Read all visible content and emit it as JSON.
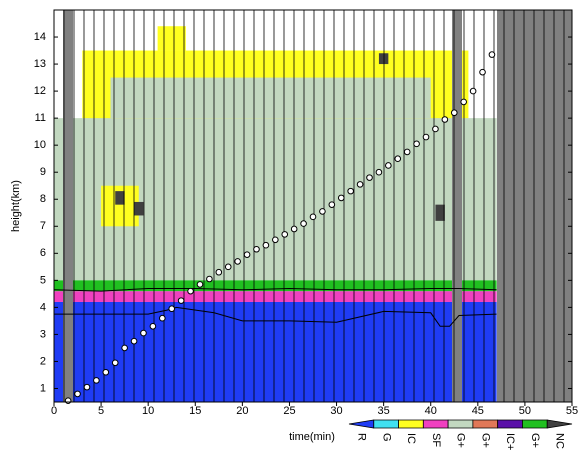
{
  "chart_data": {
    "type": "heatmap",
    "x_label": "time(min)",
    "y_label": "height(km)",
    "xlim": [
      0,
      55
    ],
    "ylim": [
      0.5,
      15
    ],
    "xticks": [
      0,
      5,
      10,
      15,
      20,
      25,
      30,
      35,
      40,
      45,
      50,
      55
    ],
    "yticks": [
      1,
      2,
      3,
      4,
      5,
      6,
      7,
      8,
      9,
      10,
      11,
      12,
      13,
      14
    ],
    "classes": [
      {
        "name": "R",
        "color": "#1f3cf5"
      },
      {
        "name": "G",
        "color": "#40e0f0"
      },
      {
        "name": "IC",
        "color": "#ffff20"
      },
      {
        "name": "SF",
        "color": "#f040c0"
      },
      {
        "name": "G+",
        "color": "#c2d8c0"
      },
      {
        "name": "G+",
        "color": "#e07858"
      },
      {
        "name": "IC+",
        "color": "#5a10a8"
      },
      {
        "name": "G+",
        "color": "#20c020"
      },
      {
        "name": "NC",
        "color": "#404040"
      }
    ],
    "regions": [
      {
        "class": 2,
        "x": [
          3,
          44
        ],
        "y": [
          10.5,
          13.5
        ]
      },
      {
        "class": 2,
        "x": [
          11,
          14
        ],
        "y": [
          13.5,
          14.4
        ]
      },
      {
        "class": 4,
        "x": [
          0,
          47
        ],
        "y": [
          5,
          11
        ]
      },
      {
        "class": 4,
        "x": [
          6,
          40
        ],
        "y": [
          11,
          12.5
        ]
      },
      {
        "class": 2,
        "x": [
          5,
          9
        ],
        "y": [
          7,
          8.5
        ]
      },
      {
        "class": 0,
        "x": [
          0,
          47
        ],
        "y": [
          0.5,
          4.2
        ]
      },
      {
        "class": 3,
        "x": [
          0,
          47
        ],
        "y": [
          4.2,
          4.6
        ]
      },
      {
        "class": 7,
        "x": [
          0,
          47
        ],
        "y": [
          4.6,
          5
        ]
      },
      {
        "class": 8,
        "x": [
          6.5,
          7.5
        ],
        "y": [
          7.8,
          8.3
        ]
      },
      {
        "class": 8,
        "x": [
          8.5,
          9.5
        ],
        "y": [
          7.4,
          7.9
        ]
      },
      {
        "class": 8,
        "x": [
          40.5,
          41.5
        ],
        "y": [
          7.2,
          7.8
        ]
      },
      {
        "class": 8,
        "x": [
          34.5,
          35.5
        ],
        "y": [
          13,
          13.4
        ]
      }
    ],
    "markers": {
      "x": [
        1.5,
        2.5,
        3.5,
        4.5,
        5.5,
        6.5,
        7.5,
        8.5,
        9.5,
        10.5,
        11.5,
        12.5,
        13.5,
        14.5,
        15.5,
        16.5,
        17.5,
        18.5,
        19.5,
        20.5,
        21.5,
        22.5,
        23.5,
        24.5,
        25.5,
        26.5,
        27.5,
        28.5,
        29.5,
        30.5,
        31.5,
        32.5,
        33.5,
        34.5,
        35.5,
        36.5,
        37.5,
        38.5,
        39.5,
        40.5,
        41.5,
        42.5,
        43.5,
        44.5,
        45.5,
        46.5
      ],
      "y": [
        0.55,
        0.8,
        1.05,
        1.3,
        1.6,
        1.95,
        2.5,
        2.75,
        3.05,
        3.3,
        3.6,
        3.95,
        4.25,
        4.6,
        4.85,
        5.05,
        5.3,
        5.5,
        5.7,
        5.95,
        6.15,
        6.3,
        6.5,
        6.7,
        6.9,
        7.1,
        7.35,
        7.55,
        7.8,
        8.05,
        8.3,
        8.55,
        8.8,
        9.0,
        9.25,
        9.5,
        9.75,
        10.05,
        10.3,
        10.6,
        10.95,
        11.2,
        11.6,
        12.0,
        12.7,
        13.35
      ]
    },
    "contours": [
      {
        "x": [
          0,
          5,
          10,
          15,
          20,
          25,
          30,
          35,
          40,
          43,
          47
        ],
        "y": [
          4.65,
          4.6,
          4.7,
          4.7,
          4.65,
          4.7,
          4.65,
          4.65,
          4.7,
          4.7,
          4.65
        ]
      },
      {
        "x": [
          0,
          10,
          12,
          13,
          17,
          20,
          25,
          30,
          35,
          40,
          41,
          42,
          43,
          47
        ],
        "y": [
          3.75,
          3.75,
          3.9,
          4.0,
          3.8,
          3.5,
          3.5,
          3.45,
          3.85,
          3.8,
          3.3,
          3.3,
          3.7,
          3.75
        ]
      }
    ]
  }
}
